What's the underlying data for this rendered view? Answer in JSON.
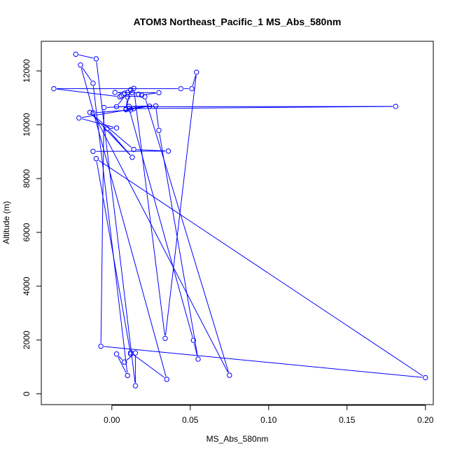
{
  "chart_data": {
    "type": "line",
    "title": "ATOM3 Northeast_Pacific_1 MS_Abs_580nm",
    "xlabel": "MS_Abs_580nm",
    "ylabel": "Altitude (m)",
    "xlim": [
      -0.045,
      0.205
    ],
    "ylim": [
      -400,
      13100
    ],
    "xticks": [
      0.0,
      0.05,
      0.1,
      0.15,
      0.2
    ],
    "xtick_labels": [
      "0.00",
      "0.05",
      "0.10",
      "0.15",
      "0.20"
    ],
    "yticks": [
      0,
      2000,
      4000,
      6000,
      8000,
      10000,
      12000
    ],
    "ytick_labels": [
      "0",
      "2000",
      "4000",
      "6000",
      "8000",
      "10000",
      "12000"
    ],
    "series": [
      {
        "color": "#0000ff",
        "marker": "open-circle",
        "x": [
          -0.023,
          -0.01,
          0.015,
          0.015,
          0.008,
          0.003,
          0.01,
          -0.012,
          -0.02,
          0.035,
          0.012,
          0.012,
          -0.01,
          0.2,
          -0.007,
          -0.005,
          0.011,
          0.028,
          0.03,
          0.055,
          0.052,
          0.011,
          0.012,
          -0.012,
          0.075,
          0.021,
          0.006,
          0.005,
          -0.037,
          0.044,
          0.051,
          0.054,
          0.034,
          0.014,
          0.012,
          0.009,
          0.01,
          0.008,
          0.002,
          0.03,
          0.019,
          0.017,
          0.013,
          0.01,
          0.003,
          0.181,
          0.014,
          0.009,
          0.011,
          0.024,
          -0.021,
          0.003,
          -0.003,
          0.013,
          -0.014,
          0.014,
          0.036,
          -0.012
        ],
        "y": [
          12620,
          12450,
          300,
          1520,
          1180,
          1480,
          680,
          11540,
          12220,
          540,
          1530,
          1480,
          8740,
          600,
          1770,
          10640,
          10680,
          10700,
          9790,
          1290,
          1990,
          10600,
          10550,
          10440,
          690,
          11040,
          11070,
          11040,
          11340,
          11340,
          11340,
          11950,
          2060,
          11350,
          11300,
          10580,
          11030,
          11170,
          11200,
          11190,
          11100,
          11130,
          11190,
          11200,
          10670,
          10680,
          10600,
          10560,
          10600,
          10690,
          10250,
          9880,
          9850,
          8790,
          10460,
          9080,
          9020,
          9010
        ]
      }
    ]
  }
}
